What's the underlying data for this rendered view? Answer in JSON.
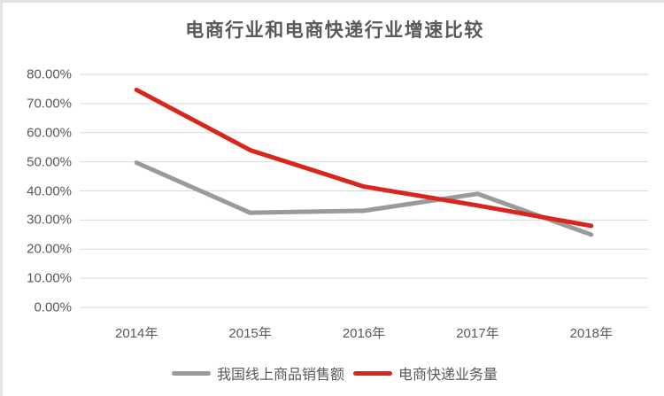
{
  "page": {
    "background_color": "#ffffff",
    "frame_border_color": "#e2e2e2",
    "text_color": "#595959",
    "gridline_color": "#d9d9d9"
  },
  "chart_data": {
    "type": "line",
    "title": "电商行业和电商快递行业增速比较",
    "categories": [
      "2014年",
      "2015年",
      "2016年",
      "2017年",
      "2018年"
    ],
    "series": [
      {
        "name": "我国线上商品销售额",
        "color": "#9a9a9a",
        "values": [
          49.7,
          32.5,
          33.2,
          39.0,
          25.0
        ]
      },
      {
        "name": "电商快递业务量",
        "color": "#d9261c",
        "values": [
          74.7,
          54.0,
          41.5,
          35.0,
          28.0
        ]
      }
    ],
    "xlabel": "",
    "ylabel": "",
    "ylim": [
      0,
      80
    ],
    "ytick_step": 10,
    "ytick_labels": [
      "0.00%",
      "10.00%",
      "20.00%",
      "30.00%",
      "40.00%",
      "50.00%",
      "60.00%",
      "70.00%",
      "80.00%"
    ],
    "grid": true,
    "legend_position": "bottom"
  }
}
